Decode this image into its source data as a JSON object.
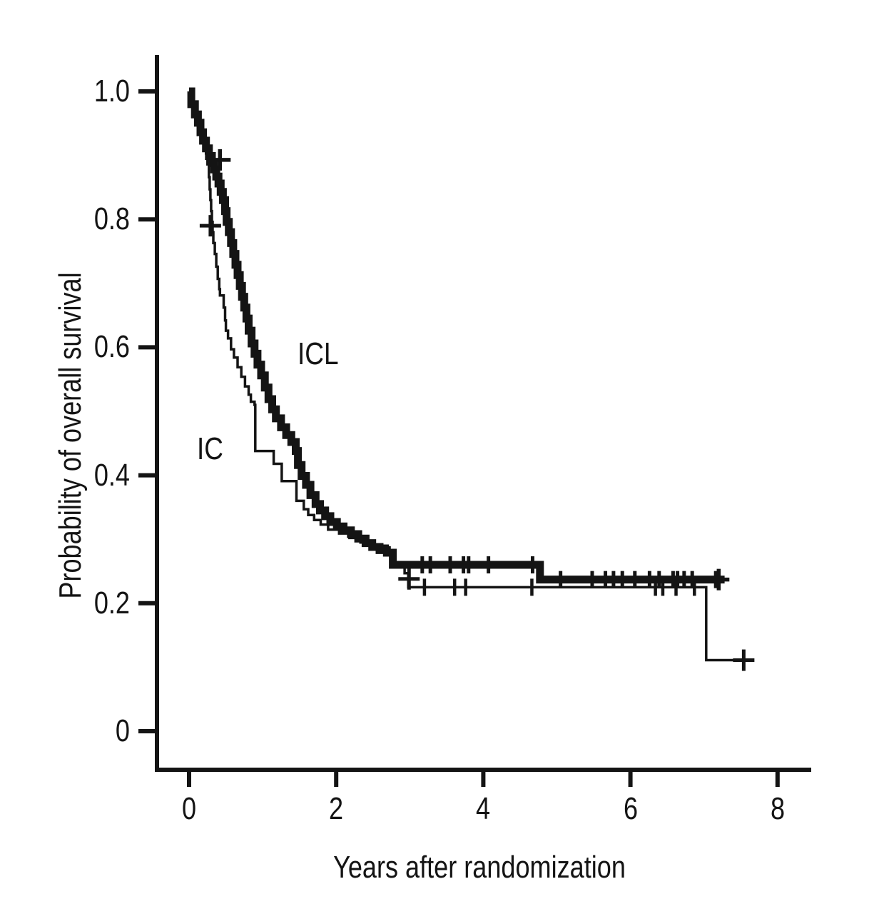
{
  "labels": {
    "icl": "ICL",
    "ic": "IC"
  },
  "chart_data": {
    "type": "line",
    "subtype": "kaplan-meier-step",
    "title": "",
    "xlabel": "Years after randomization",
    "ylabel": "Probability of overall survival",
    "xlim": [
      0,
      8.45
    ],
    "ylim": [
      0,
      1.05
    ],
    "grid": false,
    "legend": "inline-curve-labels",
    "line_color": "#141414",
    "x_ticks": [
      0,
      2,
      4,
      6,
      8
    ],
    "y_ticks": [
      1.0,
      0.8,
      0.6,
      0.4,
      0.2,
      0
    ],
    "x_tick_labels": [
      "0",
      "2",
      "4",
      "6",
      "8"
    ],
    "y_tick_labels": [
      "1.0",
      "0.8",
      "0.6",
      "0.4",
      "0.2",
      "0"
    ],
    "series": [
      {
        "name": "IC",
        "label": "IC",
        "line_width": "thin",
        "label_pos": {
          "t": 0.28,
          "p": 0.44
        },
        "points": [
          [
            0,
            1.0
          ],
          [
            0.03,
            0.98
          ],
          [
            0.08,
            0.964
          ],
          [
            0.12,
            0.951
          ],
          [
            0.155,
            0.936
          ],
          [
            0.19,
            0.923
          ],
          [
            0.21,
            0.916
          ],
          [
            0.23,
            0.903
          ],
          [
            0.25,
            0.886
          ],
          [
            0.27,
            0.866
          ],
          [
            0.28,
            0.847
          ],
          [
            0.29,
            0.83
          ],
          [
            0.3,
            0.813
          ],
          [
            0.31,
            0.796
          ],
          [
            0.32,
            0.78
          ],
          [
            0.33,
            0.763
          ],
          [
            0.35,
            0.746
          ],
          [
            0.37,
            0.726
          ],
          [
            0.39,
            0.707
          ],
          [
            0.41,
            0.691
          ],
          [
            0.42,
            0.681
          ],
          [
            0.47,
            0.662
          ],
          [
            0.49,
            0.642
          ],
          [
            0.5,
            0.626
          ],
          [
            0.53,
            0.614
          ],
          [
            0.57,
            0.597
          ],
          [
            0.61,
            0.584
          ],
          [
            0.66,
            0.569
          ],
          [
            0.71,
            0.554
          ],
          [
            0.76,
            0.539
          ],
          [
            0.81,
            0.526
          ],
          [
            0.84,
            0.515
          ],
          [
            0.89,
            0.51
          ],
          [
            0.9,
            0.438
          ],
          [
            1.15,
            0.418
          ],
          [
            1.26,
            0.391
          ],
          [
            1.46,
            0.36
          ],
          [
            1.56,
            0.347
          ],
          [
            1.62,
            0.338
          ],
          [
            1.7,
            0.33
          ],
          [
            1.79,
            0.323
          ],
          [
            1.89,
            0.315
          ],
          [
            2.04,
            0.309
          ],
          [
            2.18,
            0.302
          ],
          [
            2.33,
            0.295
          ],
          [
            2.45,
            0.29
          ],
          [
            2.7,
            0.28
          ],
          [
            2.78,
            0.262
          ],
          [
            2.93,
            0.247
          ],
          [
            2.98,
            0.225
          ],
          [
            7.03,
            0.111
          ],
          [
            7.64,
            0.111
          ]
        ],
        "censor_crosses": [
          [
            0.29,
            0.79
          ],
          [
            2.99,
            0.238
          ],
          [
            7.54,
            0.111
          ]
        ],
        "censor_ticks": [
          [
            3.2,
            0.225
          ],
          [
            3.61,
            0.225
          ],
          [
            3.76,
            0.225
          ],
          [
            4.66,
            0.225
          ],
          [
            6.34,
            0.225
          ],
          [
            6.44,
            0.225
          ],
          [
            6.62,
            0.225
          ],
          [
            6.87,
            0.225
          ]
        ]
      },
      {
        "name": "ICL",
        "label": "ICL",
        "line_width": "thick",
        "label_pos": {
          "t": 1.73,
          "p": 0.59
        },
        "points": [
          [
            0,
            1.0
          ],
          [
            0.03,
            0.98
          ],
          [
            0.08,
            0.964
          ],
          [
            0.12,
            0.951
          ],
          [
            0.155,
            0.936
          ],
          [
            0.19,
            0.923
          ],
          [
            0.23,
            0.911
          ],
          [
            0.27,
            0.899
          ],
          [
            0.31,
            0.888
          ],
          [
            0.34,
            0.878
          ],
          [
            0.37,
            0.867
          ],
          [
            0.4,
            0.856
          ],
          [
            0.43,
            0.843
          ],
          [
            0.46,
            0.83
          ],
          [
            0.49,
            0.813
          ],
          [
            0.51,
            0.796
          ],
          [
            0.54,
            0.78
          ],
          [
            0.57,
            0.763
          ],
          [
            0.6,
            0.746
          ],
          [
            0.63,
            0.729
          ],
          [
            0.66,
            0.713
          ],
          [
            0.69,
            0.696
          ],
          [
            0.72,
            0.679
          ],
          [
            0.75,
            0.662
          ],
          [
            0.78,
            0.645
          ],
          [
            0.81,
            0.626
          ],
          [
            0.85,
            0.606
          ],
          [
            0.89,
            0.59
          ],
          [
            0.93,
            0.573
          ],
          [
            0.98,
            0.556
          ],
          [
            1.03,
            0.537
          ],
          [
            1.08,
            0.519
          ],
          [
            1.13,
            0.503
          ],
          [
            1.18,
            0.489
          ],
          [
            1.25,
            0.475
          ],
          [
            1.32,
            0.463
          ],
          [
            1.39,
            0.452
          ],
          [
            1.45,
            0.438
          ],
          [
            1.48,
            0.416
          ],
          [
            1.53,
            0.399
          ],
          [
            1.59,
            0.385
          ],
          [
            1.65,
            0.369
          ],
          [
            1.72,
            0.355
          ],
          [
            1.78,
            0.345
          ],
          [
            1.85,
            0.336
          ],
          [
            1.92,
            0.327
          ],
          [
            2.01,
            0.32
          ],
          [
            2.1,
            0.314
          ],
          [
            2.2,
            0.308
          ],
          [
            2.3,
            0.301
          ],
          [
            2.4,
            0.294
          ],
          [
            2.49,
            0.288
          ],
          [
            2.59,
            0.283
          ],
          [
            2.69,
            0.279
          ],
          [
            2.77,
            0.26
          ],
          [
            4.77,
            0.237
          ],
          [
            7.28,
            0.237
          ]
        ],
        "censor_crosses": [
          [
            0.42,
            0.893
          ],
          [
            7.2,
            0.237
          ]
        ],
        "censor_ticks": [
          [
            3.17,
            0.26
          ],
          [
            3.28,
            0.26
          ],
          [
            3.55,
            0.26
          ],
          [
            3.73,
            0.26
          ],
          [
            3.8,
            0.26
          ],
          [
            4.07,
            0.26
          ],
          [
            4.67,
            0.26
          ],
          [
            5.05,
            0.237
          ],
          [
            5.48,
            0.237
          ],
          [
            5.66,
            0.237
          ],
          [
            5.77,
            0.237
          ],
          [
            5.89,
            0.237
          ],
          [
            6.06,
            0.237
          ],
          [
            6.26,
            0.237
          ],
          [
            6.39,
            0.237
          ],
          [
            6.58,
            0.237
          ],
          [
            6.64,
            0.237
          ],
          [
            6.73,
            0.237
          ],
          [
            6.84,
            0.237
          ],
          [
            7.16,
            0.237
          ]
        ]
      }
    ]
  }
}
